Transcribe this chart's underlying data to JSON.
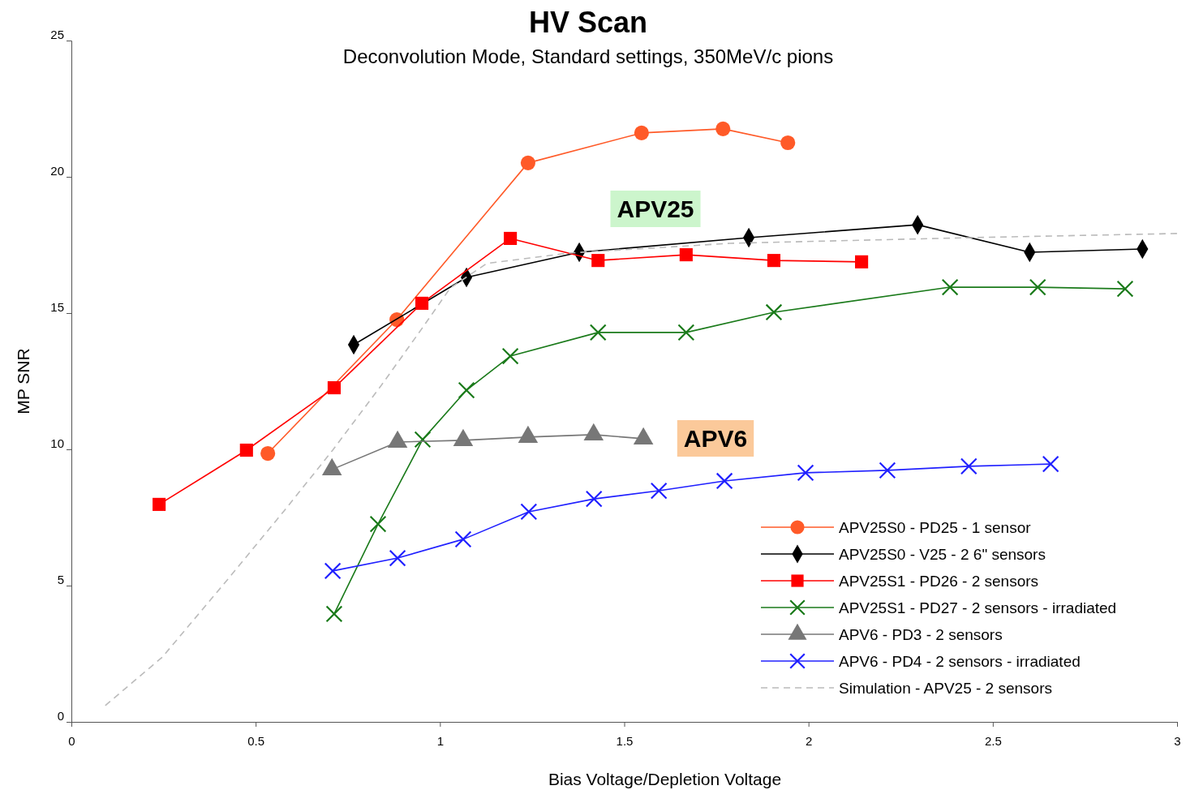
{
  "chart_data": {
    "type": "line",
    "title": "HV Scan",
    "subtitle": "Deconvolution Mode, Standard settings, 350MeV/c pions",
    "xlabel": "Bias Voltage/Depletion Voltage",
    "ylabel": "MP SNR",
    "xlim": [
      0,
      3
    ],
    "xticks": [
      0,
      0.5,
      1,
      1.5,
      2,
      2.5,
      3
    ],
    "ylim": [
      0,
      25
    ],
    "yticks": [
      0,
      5,
      10,
      15,
      20,
      25
    ],
    "grid": false,
    "legend": "bottom right",
    "annotations": [
      "APV25",
      "APV6"
    ],
    "series": [
      {
        "name": "APV25S0 - PD25 - 1 sensor",
        "color": "#ff5a28",
        "marker": "circle",
        "x": [
          0.533,
          0.883,
          1.239,
          1.547,
          1.768,
          1.944
        ],
        "values": [
          9.85,
          14.76,
          20.51,
          21.61,
          21.76,
          21.25
        ]
      },
      {
        "name": "APV25S0 - V25 - 2 6\" sensors",
        "color": "#000000",
        "marker": "diamond",
        "x": [
          0.766,
          1.072,
          1.378,
          1.838,
          2.296,
          2.6,
          2.906
        ],
        "values": [
          13.84,
          16.31,
          17.23,
          17.77,
          18.24,
          17.23,
          17.35
        ]
      },
      {
        "name": "APV25S1 - PD26 - 2 sensors",
        "color": "#ff0000",
        "marker": "square",
        "x": [
          0.238,
          0.475,
          0.713,
          0.951,
          1.191,
          1.429,
          1.668,
          1.906,
          2.144
        ],
        "values": [
          7.98,
          9.97,
          12.26,
          15.36,
          17.74,
          16.93,
          17.14,
          16.93,
          16.88
        ]
      },
      {
        "name": "APV25S1 - PD27 - 2 sensors - irradiated",
        "color": "#1a7a1a",
        "marker": "cross",
        "x": [
          0.713,
          0.832,
          0.953,
          1.072,
          1.191,
          1.429,
          1.668,
          1.906,
          2.384,
          2.622,
          2.859
        ],
        "values": [
          3.96,
          7.26,
          10.36,
          12.17,
          13.42,
          14.29,
          14.29,
          15.03,
          15.95,
          15.95,
          15.89
        ]
      },
      {
        "name": "APV6 - PD3 - 2 sensors",
        "color": "#777777",
        "marker": "triangle",
        "x": [
          0.707,
          0.885,
          1.063,
          1.239,
          1.417,
          1.552
        ],
        "values": [
          9.26,
          10.27,
          10.33,
          10.45,
          10.54,
          10.39
        ]
      },
      {
        "name": "APV6 - PD4 - 2 sensors - irradiated",
        "color": "#2020ff",
        "marker": "cross",
        "x": [
          0.709,
          0.885,
          1.063,
          1.241,
          1.418,
          1.594,
          1.772,
          1.992,
          2.214,
          2.435,
          2.657
        ],
        "values": [
          5.54,
          6.01,
          6.7,
          7.71,
          8.18,
          8.48,
          8.84,
          9.14,
          9.23,
          9.38,
          9.46
        ]
      },
      {
        "name": "Simulation - APV25 - 2 sensors",
        "color": "#bbbbbb",
        "marker": "none",
        "line_style": "dashed",
        "x": [
          0.092,
          0.247,
          0.423,
          0.577,
          0.709,
          0.841,
          0.951,
          1.028,
          1.127,
          1.347,
          1.787,
          2.447,
          3.0
        ],
        "values": [
          0.6,
          2.38,
          5.21,
          7.74,
          9.97,
          12.35,
          14.43,
          15.92,
          16.82,
          17.2,
          17.56,
          17.77,
          17.92
        ]
      }
    ]
  }
}
